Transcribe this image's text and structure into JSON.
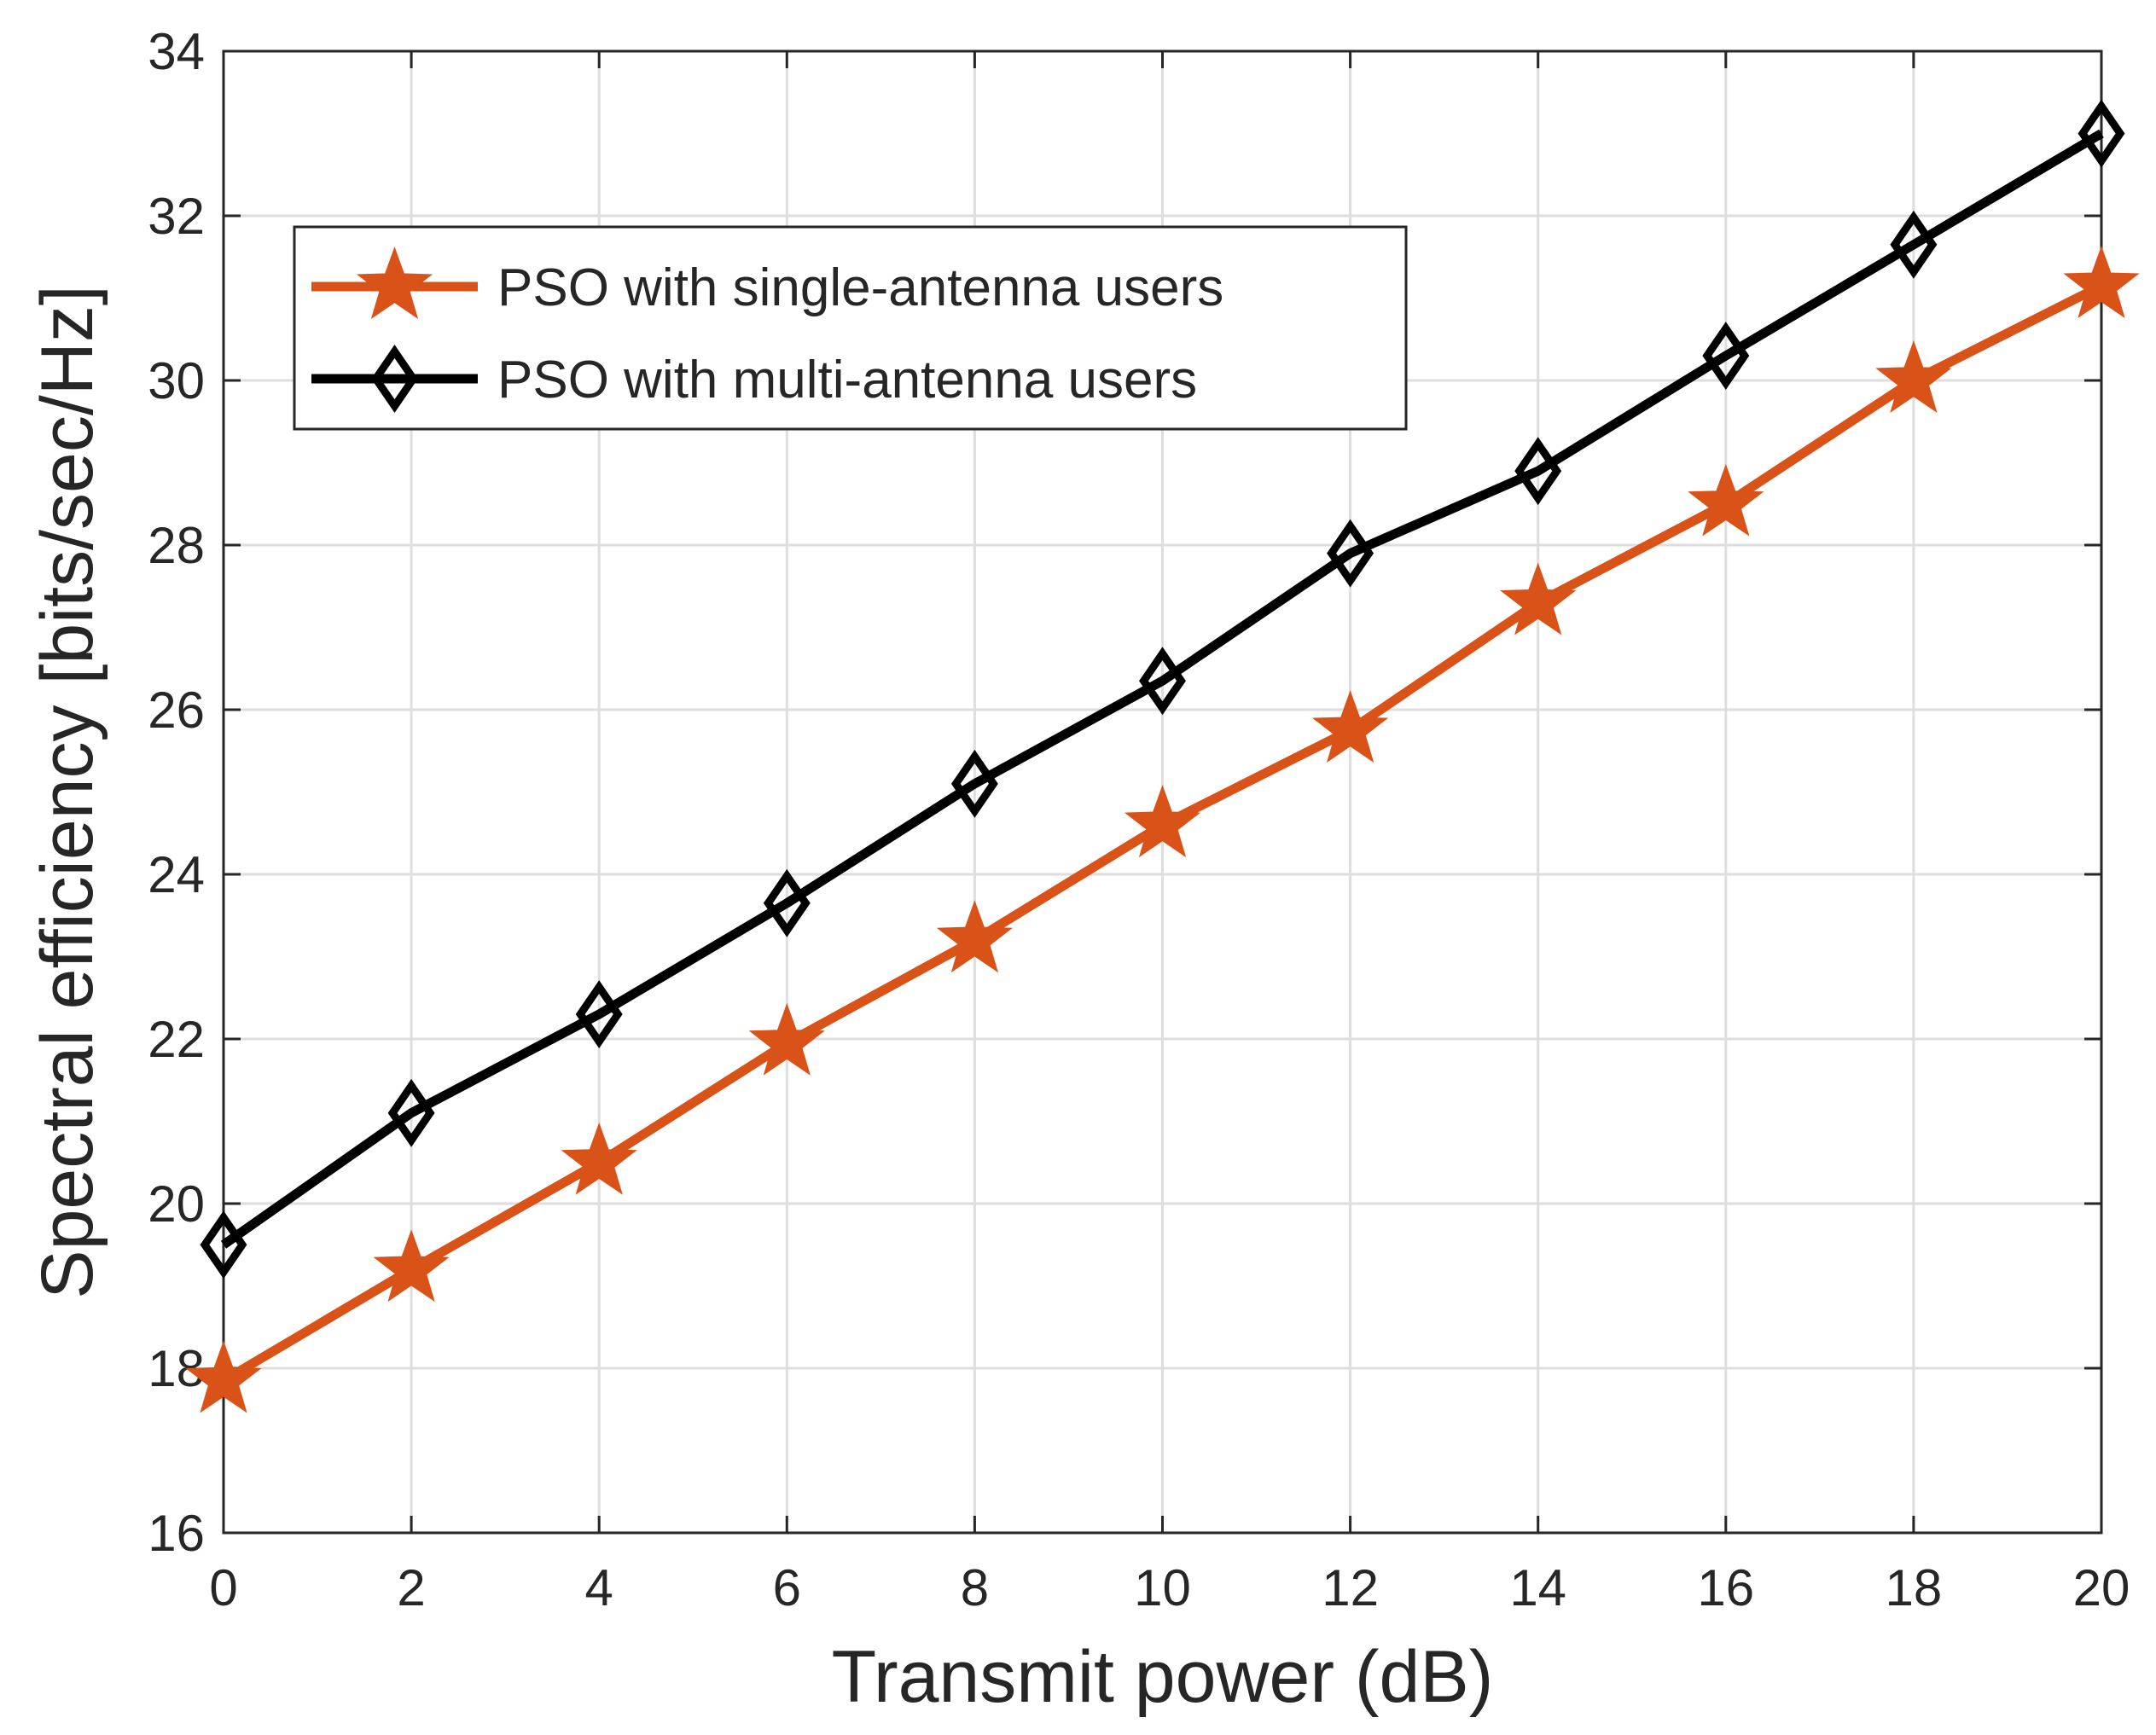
{
  "chart_data": {
    "type": "line",
    "title": "",
    "xlabel": "Transmit power (dB)",
    "ylabel": "Spectral efficiency [bits/sec/Hz]",
    "xlim": [
      0,
      20
    ],
    "ylim": [
      16,
      34
    ],
    "xticks": [
      "0",
      "2",
      "4",
      "6",
      "8",
      "10",
      "12",
      "14",
      "16",
      "18",
      "20"
    ],
    "yticks": [
      "16",
      "18",
      "20",
      "22",
      "24",
      "26",
      "28",
      "30",
      "32",
      "34"
    ],
    "grid": true,
    "legend_position": "top-left",
    "x": [
      0,
      2,
      4,
      6,
      8,
      10,
      12,
      14,
      16,
      18,
      20
    ],
    "series": [
      {
        "name": "PSO with single-antenna users",
        "color": "#D95319",
        "marker": "star",
        "values": [
          17.85,
          19.2,
          20.5,
          21.95,
          23.2,
          24.6,
          25.75,
          27.3,
          28.5,
          30.0,
          31.15
        ]
      },
      {
        "name": "PSO with multi-antenna users",
        "color": "#000000",
        "marker": "diamond",
        "values": [
          19.5,
          21.1,
          22.3,
          23.65,
          25.1,
          26.35,
          27.9,
          28.9,
          30.3,
          31.65,
          33.0
        ]
      }
    ]
  }
}
